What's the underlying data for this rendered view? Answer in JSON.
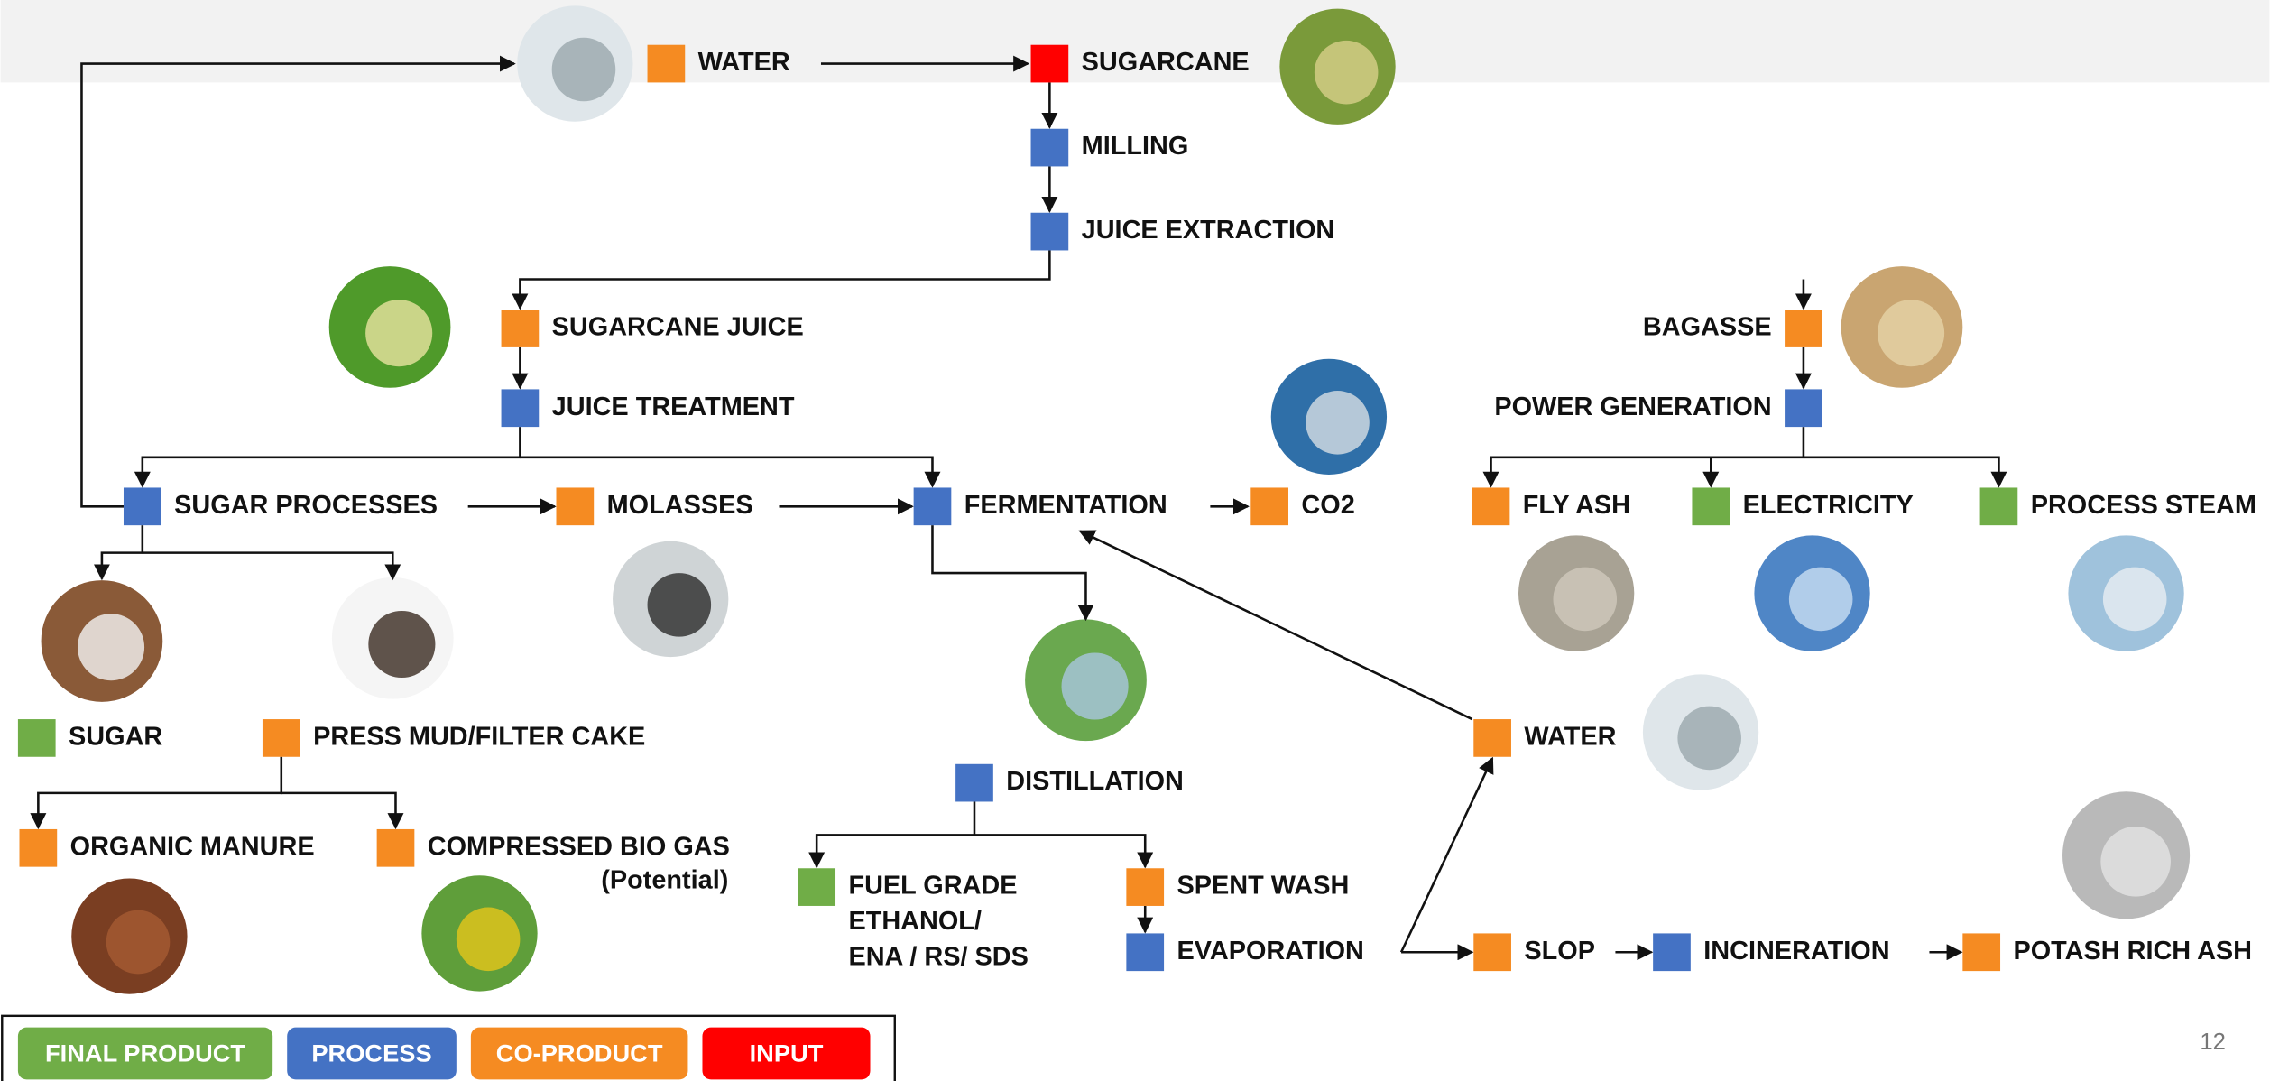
{
  "nodes": [
    {
      "label": "WATER"
    },
    {
      "label": "SUGARCANE"
    },
    {
      "label": "MILLING"
    },
    {
      "label": "JUICE EXTRACTION"
    },
    {
      "label": "SUGARCANE JUICE"
    },
    {
      "label": "BAGASSE"
    },
    {
      "label": "JUICE TREATMENT"
    },
    {
      "label": "POWER GENERATION"
    },
    {
      "label": "SUGAR PROCESSES"
    },
    {
      "label": "MOLASSES"
    },
    {
      "label": "FERMENTATION"
    },
    {
      "label": "CO2"
    },
    {
      "label": "FLY ASH"
    },
    {
      "label": "ELECTRICITY"
    },
    {
      "label": "PROCESS STEAM"
    },
    {
      "label": "SUGAR"
    },
    {
      "label": "PRESS MUD/FILTER CAKE"
    },
    {
      "label": "WATER"
    },
    {
      "label": "DISTILLATION"
    },
    {
      "label": "ORGANIC MANURE"
    },
    {
      "label": "COMPRESSED BIO GAS",
      "note": "(Potential)"
    },
    {
      "label_lines": [
        "FUEL GRADE",
        "ETHANOL/",
        "ENA / RS/ SDS"
      ]
    },
    {
      "label": "SPENT WASH"
    },
    {
      "label": "EVAPORATION"
    },
    {
      "label": "SLOP"
    },
    {
      "label": "INCINERATION"
    },
    {
      "label": "POTASH RICH ASH"
    }
  ],
  "legend": [
    "FINAL PRODUCT",
    "PROCESS",
    "CO-PRODUCT",
    "INPUT"
  ],
  "page_number": "12"
}
